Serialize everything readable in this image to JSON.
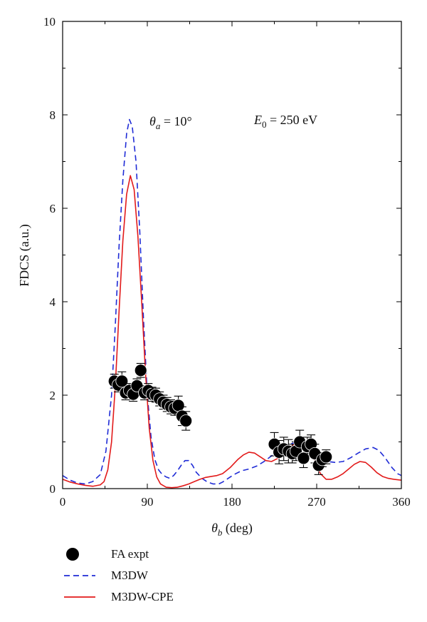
{
  "chart_data": {
    "type": "line",
    "xlabel": "θb (deg)",
    "ylabel": "FDCS (a.u.)",
    "xlim": [
      0,
      360
    ],
    "ylim": [
      0,
      10
    ],
    "xticks": [
      0,
      90,
      180,
      270,
      360
    ],
    "yticks": [
      0,
      2,
      4,
      6,
      8,
      10
    ],
    "grid": false,
    "annotations": [
      "θa = 10°",
      "E0 = 250 eV"
    ],
    "legend": {
      "placement": "below",
      "entries": [
        "FA expt",
        "M3DW",
        "M3DW-CPE"
      ]
    },
    "series": [
      {
        "name": "FA expt",
        "kind": "scatter",
        "color": "#000000",
        "points": [
          {
            "x": 55,
            "y": 2.3,
            "err": 0.15
          },
          {
            "x": 59,
            "y": 2.22,
            "err": 0.15
          },
          {
            "x": 63,
            "y": 2.3,
            "err": 0.2
          },
          {
            "x": 67,
            "y": 2.05,
            "err": 0.15
          },
          {
            "x": 71,
            "y": 2.1,
            "err": 0.15
          },
          {
            "x": 75,
            "y": 2.02,
            "err": 0.15
          },
          {
            "x": 79,
            "y": 2.2,
            "err": 0.15
          },
          {
            "x": 83,
            "y": 2.53,
            "err": 0.15
          },
          {
            "x": 87,
            "y": 2.05,
            "err": 0.15
          },
          {
            "x": 91,
            "y": 2.1,
            "err": 0.15
          },
          {
            "x": 95,
            "y": 2.02,
            "err": 0.15
          },
          {
            "x": 99,
            "y": 2.0,
            "err": 0.15
          },
          {
            "x": 103,
            "y": 1.92,
            "err": 0.15
          },
          {
            "x": 107,
            "y": 1.85,
            "err": 0.15
          },
          {
            "x": 111,
            "y": 1.8,
            "err": 0.15
          },
          {
            "x": 115,
            "y": 1.75,
            "err": 0.15
          },
          {
            "x": 119,
            "y": 1.72,
            "err": 0.15
          },
          {
            "x": 123,
            "y": 1.78,
            "err": 0.2
          },
          {
            "x": 127,
            "y": 1.55,
            "err": 0.2
          },
          {
            "x": 131,
            "y": 1.45,
            "err": 0.2
          },
          {
            "x": 225,
            "y": 0.95,
            "err": 0.25
          },
          {
            "x": 230,
            "y": 0.78,
            "err": 0.25
          },
          {
            "x": 235,
            "y": 0.85,
            "err": 0.25
          },
          {
            "x": 240,
            "y": 0.8,
            "err": 0.25
          },
          {
            "x": 244,
            "y": 0.75,
            "err": 0.2
          },
          {
            "x": 248,
            "y": 0.8,
            "err": 0.2
          },
          {
            "x": 252,
            "y": 1.0,
            "err": 0.25
          },
          {
            "x": 256,
            "y": 0.65,
            "err": 0.2
          },
          {
            "x": 260,
            "y": 0.9,
            "err": 0.2
          },
          {
            "x": 264,
            "y": 0.95,
            "err": 0.2
          },
          {
            "x": 268,
            "y": 0.75,
            "err": 0.2
          },
          {
            "x": 272,
            "y": 0.5,
            "err": 0.2
          },
          {
            "x": 276,
            "y": 0.62,
            "err": 0.15
          },
          {
            "x": 280,
            "y": 0.68,
            "err": 0.15
          }
        ]
      },
      {
        "name": "M3DW",
        "kind": "line",
        "style": "dashed",
        "color": "#1f2bd6",
        "x": [
          0,
          8,
          16,
          24,
          32,
          40,
          46,
          52,
          56,
          60,
          64,
          68,
          71,
          74,
          78,
          82,
          86,
          90,
          94,
          98,
          102,
          106,
          110,
          114,
          118,
          122,
          126,
          130,
          134,
          138,
          142,
          148,
          154,
          160,
          166,
          170,
          176,
          182,
          190,
          198,
          206,
          214,
          222,
          230,
          238,
          246,
          252,
          258,
          262,
          266,
          270,
          276,
          282,
          290,
          298,
          306,
          314,
          322,
          330,
          336,
          342,
          350,
          356,
          360
        ],
        "y": [
          0.28,
          0.18,
          0.12,
          0.1,
          0.15,
          0.3,
          0.8,
          2.0,
          3.5,
          5.2,
          6.6,
          7.6,
          7.9,
          7.75,
          7.0,
          5.5,
          3.6,
          2.0,
          1.1,
          0.62,
          0.4,
          0.3,
          0.25,
          0.22,
          0.28,
          0.38,
          0.5,
          0.6,
          0.6,
          0.5,
          0.35,
          0.22,
          0.14,
          0.1,
          0.1,
          0.14,
          0.22,
          0.3,
          0.38,
          0.42,
          0.48,
          0.58,
          0.7,
          0.82,
          0.92,
          0.98,
          1.0,
          0.98,
          0.92,
          0.82,
          0.7,
          0.62,
          0.58,
          0.56,
          0.58,
          0.66,
          0.76,
          0.85,
          0.88,
          0.82,
          0.68,
          0.45,
          0.32,
          0.28
        ]
      },
      {
        "name": "M3DW-CPE",
        "kind": "line",
        "style": "solid",
        "color": "#e21a1a",
        "x": [
          0,
          8,
          16,
          24,
          32,
          40,
          44,
          48,
          52,
          56,
          60,
          64,
          68,
          72,
          76,
          80,
          84,
          88,
          92,
          96,
          100,
          104,
          110,
          116,
          122,
          128,
          134,
          140,
          146,
          152,
          158,
          164,
          170,
          178,
          186,
          192,
          198,
          204,
          210,
          216,
          222,
          228,
          234,
          240,
          246,
          250,
          254,
          258,
          262,
          266,
          270,
          274,
          280,
          286,
          292,
          298,
          304,
          310,
          316,
          322,
          328,
          334,
          340,
          346,
          352,
          360
        ],
        "y": [
          0.2,
          0.14,
          0.1,
          0.07,
          0.05,
          0.08,
          0.15,
          0.4,
          1.0,
          2.2,
          3.8,
          5.3,
          6.3,
          6.7,
          6.4,
          5.4,
          4.0,
          2.5,
          1.3,
          0.6,
          0.25,
          0.1,
          0.03,
          0.02,
          0.03,
          0.06,
          0.1,
          0.15,
          0.2,
          0.24,
          0.26,
          0.28,
          0.32,
          0.45,
          0.62,
          0.72,
          0.78,
          0.76,
          0.68,
          0.6,
          0.58,
          0.64,
          0.75,
          0.86,
          0.95,
          1.0,
          1.0,
          0.98,
          0.9,
          0.72,
          0.5,
          0.32,
          0.2,
          0.2,
          0.25,
          0.32,
          0.42,
          0.52,
          0.58,
          0.56,
          0.46,
          0.34,
          0.26,
          0.22,
          0.2,
          0.18
        ]
      }
    ]
  }
}
